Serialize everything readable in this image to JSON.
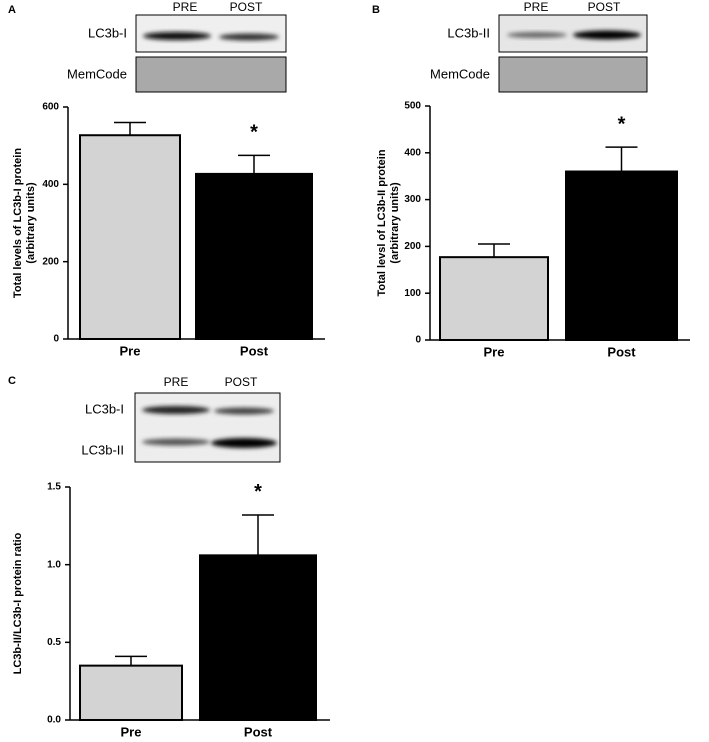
{
  "panels": [
    {
      "letter": "A",
      "lanes": [
        "PRE",
        "POST"
      ],
      "rows": [
        "LC3b-I",
        "MemCode"
      ]
    },
    {
      "letter": "B",
      "lanes": [
        "PRE",
        "POST"
      ],
      "rows": [
        "LC3b-II",
        "MemCode"
      ]
    },
    {
      "letter": "C",
      "lanes": [
        "PRE",
        "POST"
      ],
      "rows": [
        "LC3b-I",
        "LC3b-II"
      ]
    }
  ],
  "chart_data": [
    {
      "type": "bar",
      "ylabel": [
        "Total levels of LC3b-I protein",
        "(arbitrary units)"
      ],
      "categories": [
        "Pre",
        "Post"
      ],
      "values": [
        527,
        427
      ],
      "errors": [
        33,
        48
      ],
      "colors": [
        "#d3d3d3",
        "#000000"
      ],
      "annotation": "*",
      "ylim": [
        0,
        600
      ],
      "yticks": [
        0,
        200,
        400,
        600
      ]
    },
    {
      "type": "bar",
      "ylabel": [
        "Total levsl of LC3b-II protein",
        "(arbitrary units)"
      ],
      "categories": [
        "Pre",
        "Post"
      ],
      "values": [
        177,
        360
      ],
      "errors": [
        28,
        52
      ],
      "colors": [
        "#d3d3d3",
        "#000000"
      ],
      "annotation": "*",
      "ylim": [
        0,
        500
      ],
      "yticks": [
        0,
        100,
        200,
        300,
        400,
        500
      ]
    },
    {
      "type": "bar",
      "ylabel": [
        "LC3b-II/LC3b-I protein ratio"
      ],
      "categories": [
        "Pre",
        "Post"
      ],
      "values": [
        0.35,
        1.06
      ],
      "errors": [
        0.06,
        0.26
      ],
      "colors": [
        "#d3d3d3",
        "#000000"
      ],
      "annotation": "*",
      "ylim": [
        0,
        1.5
      ],
      "yticks": [
        {
          "value": 0,
          "label": "0.0"
        },
        0.5,
        {
          "value": 1,
          "label": "1.0"
        },
        1.5
      ]
    }
  ]
}
